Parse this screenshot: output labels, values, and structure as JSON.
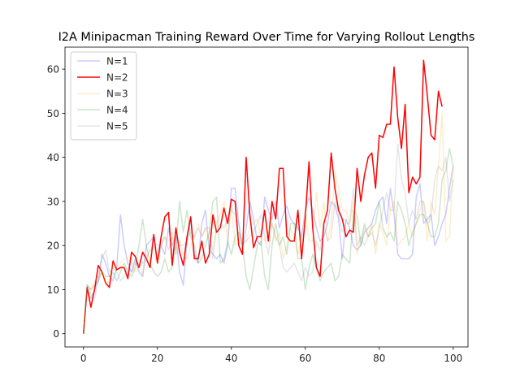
{
  "chart_data": {
    "type": "line",
    "title": "I2A Minipacman Training Reward Over Time for Varying Rollout Lengths",
    "xlabel": "",
    "ylabel": "",
    "xlim": [
      -5,
      104
    ],
    "ylim": [
      -3,
      65
    ],
    "xticks": [
      0,
      20,
      40,
      60,
      80,
      100
    ],
    "yticks": [
      0,
      10,
      20,
      30,
      40,
      50,
      60
    ],
    "legend_position": "top-left",
    "x_start": 0,
    "series": [
      {
        "name": "N=1",
        "color": "#0000ff",
        "opacity": 0.2,
        "values": [
          0,
          10,
          8,
          10,
          12,
          18,
          16,
          13,
          12,
          15,
          27,
          20,
          16,
          14,
          17,
          14,
          13,
          20,
          21,
          22,
          16,
          20,
          18,
          24,
          20,
          22,
          14,
          11,
          21,
          26,
          18,
          16,
          25,
          28,
          19,
          18,
          17,
          18,
          16,
          20,
          33,
          33,
          25,
          19,
          24,
          30,
          26,
          21,
          20,
          31,
          28,
          26,
          30,
          24,
          27,
          29,
          26,
          25,
          24,
          22,
          28,
          31,
          28,
          24,
          21,
          22,
          25,
          30,
          29,
          26,
          17,
          26,
          24,
          20,
          19,
          20,
          23,
          24,
          25,
          28,
          30,
          31,
          25,
          33,
          27,
          18,
          17,
          17,
          17,
          18,
          31,
          34,
          25,
          26,
          27,
          20,
          22,
          25,
          27,
          33,
          38
        ]
      },
      {
        "name": "N=2",
        "color": "#ff0000",
        "opacity": 1.0,
        "values": [
          0,
          10.5,
          6,
          10,
          15.5,
          14,
          11.5,
          10.5,
          16.5,
          14.5,
          15,
          15,
          12.5,
          18.5,
          17.5,
          15,
          18.5,
          17,
          15,
          22.5,
          16,
          22,
          26.5,
          27.5,
          15.5,
          24,
          18.5,
          15.5,
          22,
          26.5,
          17,
          17,
          21,
          16,
          18,
          27,
          23,
          24,
          28.5,
          25,
          30.5,
          30,
          20,
          18,
          40,
          27,
          19.5,
          22,
          22,
          28,
          21,
          30,
          26,
          37.5,
          37.5,
          22,
          21,
          21,
          28,
          17,
          26.5,
          39,
          24,
          15,
          13,
          25,
          28,
          41,
          33,
          28,
          26,
          22,
          23.5,
          23,
          37.5,
          30,
          36,
          40,
          41,
          33,
          45,
          44.5,
          47.5,
          47.5,
          60.5,
          49,
          42,
          52,
          32,
          35.5,
          34,
          35.5,
          62,
          54,
          45,
          44,
          55,
          51.5
        ]
      },
      {
        "name": "N=3",
        "color": "#ffa500",
        "opacity": 0.2,
        "values": [
          0,
          11,
          10,
          12,
          13,
          14,
          11,
          12,
          16,
          15,
          16,
          17,
          17,
          16,
          14,
          16,
          13,
          17,
          19,
          18,
          16,
          20,
          22,
          21,
          23,
          19,
          21,
          18,
          17,
          20,
          22,
          25,
          22,
          24,
          21,
          19,
          25,
          27,
          30,
          21,
          29,
          20,
          23,
          21,
          21,
          24,
          25,
          26,
          22,
          21,
          23,
          25,
          21,
          23,
          17,
          20,
          24,
          22,
          18,
          22,
          28,
          21,
          21,
          32,
          24,
          30,
          21,
          25,
          37,
          33,
          28,
          28,
          25,
          30,
          18,
          22,
          24,
          22,
          25,
          18,
          25,
          23,
          20,
          28,
          30,
          20,
          21,
          22,
          25,
          22,
          25,
          28,
          30,
          21,
          30,
          27,
          38,
          50,
          21,
          22,
          38
        ]
      },
      {
        "name": "N=4",
        "color": "#008000",
        "opacity": 0.2,
        "values": [
          0,
          11,
          10,
          11,
          12,
          14,
          13,
          13,
          14,
          12,
          14,
          16,
          14,
          13,
          15,
          20,
          26,
          20,
          16,
          14,
          13,
          14,
          17,
          14,
          15,
          20,
          30,
          23,
          28,
          22,
          20,
          16,
          17,
          20,
          23,
          30,
          31,
          16,
          17,
          21,
          18,
          22,
          23,
          20,
          13,
          10,
          15,
          20,
          21,
          13,
          10,
          20,
          25,
          20,
          22,
          18,
          25,
          25,
          17,
          17,
          10,
          15,
          18,
          15,
          12,
          14,
          15,
          16,
          12,
          13,
          18,
          17,
          16,
          28,
          27,
          20,
          25,
          22,
          24,
          25,
          30,
          24,
          22,
          23,
          21,
          30,
          28,
          25,
          20,
          23,
          25,
          27,
          27,
          25,
          22,
          22,
          25,
          35,
          37,
          42,
          38
        ]
      },
      {
        "name": "N=5",
        "color": "#808080",
        "opacity": 0.2,
        "values": [
          0,
          11,
          9,
          8,
          12,
          17,
          19,
          14,
          15,
          14,
          12,
          13,
          15,
          14,
          16,
          15,
          16,
          17,
          19,
          21,
          20,
          20,
          22,
          19,
          22,
          18,
          20,
          20,
          21,
          23,
          22,
          24,
          22,
          24,
          24,
          17,
          24,
          25,
          24,
          26,
          28,
          27,
          25,
          20,
          21,
          22,
          23,
          25,
          27,
          22,
          18,
          25,
          22,
          20,
          15,
          14,
          15,
          16,
          14,
          12,
          15,
          13,
          14,
          21,
          19,
          25,
          21,
          22,
          30,
          27,
          23,
          25,
          25,
          33,
          20,
          22,
          20,
          22,
          23,
          20,
          24,
          28,
          32,
          28,
          28,
          43,
          35,
          32,
          25,
          28,
          26,
          30,
          30,
          25,
          26,
          35,
          38,
          37,
          40,
          30,
          35
        ]
      }
    ]
  }
}
